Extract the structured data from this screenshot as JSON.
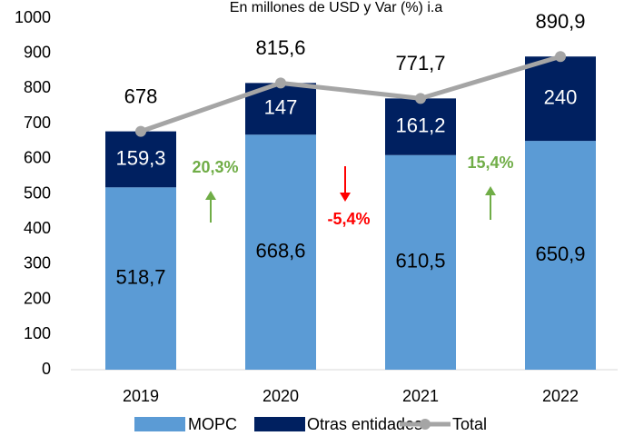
{
  "chart_data": {
    "type": "stacked_bar_line",
    "subtitle": "En millones de USD y Var (%) i.a",
    "categories": [
      "2019",
      "2020",
      "2021",
      "2022"
    ],
    "series": [
      {
        "name": "MOPC",
        "color": "#5b9bd5",
        "kind": "bar",
        "values": [
          518.7,
          668.6,
          610.5,
          650.9
        ],
        "value_labels": [
          "518,7",
          "668,6",
          "610,5",
          "650,9"
        ]
      },
      {
        "name": "Otras entidades",
        "color": "#002060",
        "kind": "bar",
        "values": [
          159.3,
          147,
          161.2,
          240
        ],
        "value_labels": [
          "159,3",
          "147",
          "161,2",
          "240"
        ]
      },
      {
        "name": "Total",
        "color": "#a5a5a5",
        "kind": "line",
        "values": [
          678,
          815.6,
          771.7,
          890.9
        ],
        "value_labels": [
          "678",
          "815,6",
          "771,7",
          "890,9"
        ]
      }
    ],
    "annotations": [
      {
        "text": "20,3%",
        "color": "#70ad47",
        "direction": "up"
      },
      {
        "text": "-5,4%",
        "color": "#ff0000",
        "direction": "down"
      },
      {
        "text": "15,4%",
        "color": "#70ad47",
        "direction": "up"
      }
    ],
    "ylim": [
      0,
      1000
    ],
    "yticks": [
      0,
      100,
      200,
      300,
      400,
      500,
      600,
      700,
      800,
      900,
      1000
    ],
    "legend": "bottom"
  }
}
